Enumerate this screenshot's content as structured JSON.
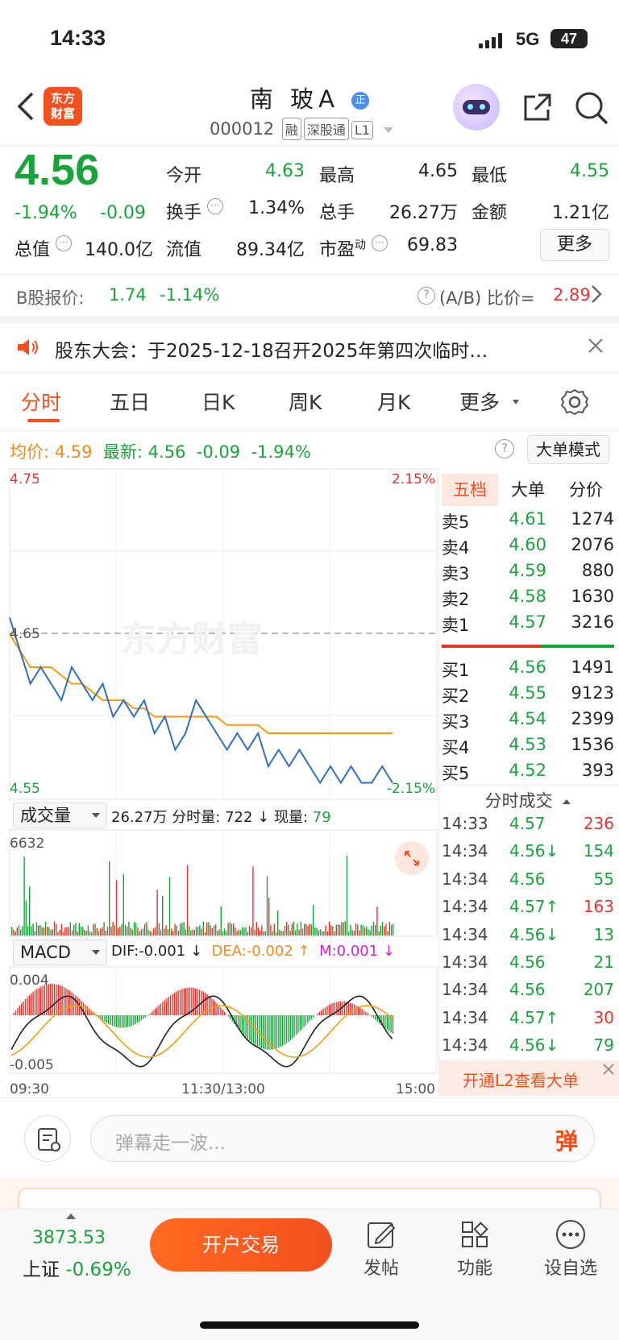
{
  "status_bar": {
    "time": "14:33",
    "network": "5G",
    "battery": "47"
  },
  "header": {
    "logo_text_1": "东方",
    "logo_text_2": "财富",
    "name": "南 玻A",
    "name_badge": "正",
    "code": "000012",
    "tags": [
      "融",
      "深股通",
      "L1"
    ]
  },
  "quote": {
    "price": "4.56",
    "change_pct": "-1.94%",
    "change": "-0.09",
    "open_label": "今开",
    "open": "4.63",
    "high_label": "最高",
    "high": "4.65",
    "low_label": "最低",
    "low": "4.55",
    "turnover_label": "换手",
    "turnover": "1.34%",
    "volume_label": "总手",
    "volume": "26.27万",
    "amount_label": "金额",
    "amount": "1.21亿",
    "mktcap_label": "总值",
    "mktcap": "140.0亿",
    "float_label": "流值",
    "float": "89.34亿",
    "pe_label": "市盈",
    "pe_sup": "动",
    "pe": "69.83",
    "more_label": "更多"
  },
  "bshare": {
    "label": "B股报价:",
    "price": "1.74",
    "change": "-1.14%",
    "ratio_label": "(A/B) 比价=",
    "ratio": "2.89"
  },
  "notice": {
    "text": "股东大会：于2025-12-18召开2025年第四次临时…"
  },
  "tabs": [
    "分时",
    "五日",
    "日K",
    "周K",
    "月K",
    "更多"
  ],
  "info_bar": {
    "avg_label": "均价:",
    "avg": "4.59",
    "latest_label": "最新:",
    "latest": "4.56",
    "chg": "-0.09",
    "pct": "-1.94%",
    "mode_btn": "大单模式"
  },
  "intraday_chart": {
    "price_top": "4.75",
    "price_mid": "4.65",
    "price_bottom": "4.55",
    "pct_top": "2.15%",
    "pct_bottom": "-2.15%",
    "watermark": "东方财富",
    "volume_label": "成交量",
    "volume_total": "26.27万",
    "seg_label": "分时量:",
    "seg_val": "722",
    "now_label": "现量:",
    "now_val": "79",
    "volume_max": "6632",
    "macd_label": "MACD",
    "dif": "DIF:-0.001",
    "dea": "DEA:-0.002",
    "m": "M:0.001",
    "macd_top": "0.004",
    "macd_bottom": "-0.005",
    "x_labels": [
      "09:30",
      "11:30/13:00",
      "15:00"
    ]
  },
  "chart_data": {
    "type": "line",
    "x_range": [
      "09:30",
      "15:00"
    ],
    "ylim": [
      4.55,
      4.75
    ],
    "series": [
      {
        "name": "最新",
        "values": [
          4.66,
          4.64,
          4.62,
          4.63,
          4.62,
          4.61,
          4.63,
          4.62,
          4.61,
          4.62,
          4.6,
          4.61,
          4.6,
          4.61,
          4.59,
          4.6,
          4.58,
          4.59,
          4.61,
          4.6,
          4.59,
          4.58,
          4.59,
          4.58,
          4.59,
          4.57,
          4.58,
          4.57,
          4.58,
          4.57,
          4.56,
          4.57,
          4.56,
          4.57,
          4.56,
          4.56,
          4.57,
          4.56
        ]
      },
      {
        "name": "均价",
        "values": [
          4.65,
          4.64,
          4.63,
          4.63,
          4.63,
          4.625,
          4.62,
          4.62,
          4.615,
          4.61,
          4.61,
          4.61,
          4.605,
          4.605,
          4.6,
          4.6,
          4.6,
          4.6,
          4.6,
          4.6,
          4.6,
          4.595,
          4.595,
          4.595,
          4.595,
          4.59,
          4.59,
          4.59,
          4.59,
          4.59,
          4.59,
          4.59,
          4.59,
          4.59,
          4.59,
          4.59,
          4.59,
          4.59
        ]
      }
    ]
  },
  "order_book": {
    "tabs": [
      "五档",
      "大单",
      "分价"
    ],
    "asks": [
      {
        "label": "卖5",
        "price": "4.61",
        "vol": "1274"
      },
      {
        "label": "卖4",
        "price": "4.60",
        "vol": "2076"
      },
      {
        "label": "卖3",
        "price": "4.59",
        "vol": "880"
      },
      {
        "label": "卖2",
        "price": "4.58",
        "vol": "1630"
      },
      {
        "label": "卖1",
        "price": "4.57",
        "vol": "3216"
      }
    ],
    "bids": [
      {
        "label": "买1",
        "price": "4.56",
        "vol": "1491"
      },
      {
        "label": "买2",
        "price": "4.55",
        "vol": "9123"
      },
      {
        "label": "买3",
        "price": "4.54",
        "vol": "2399"
      },
      {
        "label": "买4",
        "price": "4.53",
        "vol": "1536"
      },
      {
        "label": "买5",
        "price": "4.52",
        "vol": "393"
      }
    ],
    "deals_title": "分时成交",
    "deals": [
      {
        "time": "14:33",
        "price": "4.57",
        "vol": "236",
        "pc": "green",
        "vc": "red"
      },
      {
        "time": "14:34",
        "price": "4.56↓",
        "vol": "154",
        "pc": "green",
        "vc": "green"
      },
      {
        "time": "14:34",
        "price": "4.56",
        "vol": "55",
        "pc": "green",
        "vc": "green"
      },
      {
        "time": "14:34",
        "price": "4.57↑",
        "vol": "163",
        "pc": "green",
        "vc": "red"
      },
      {
        "time": "14:34",
        "price": "4.56↓",
        "vol": "13",
        "pc": "green",
        "vc": "green"
      },
      {
        "time": "14:34",
        "price": "4.56",
        "vol": "21",
        "pc": "green",
        "vc": "green"
      },
      {
        "time": "14:34",
        "price": "4.56",
        "vol": "207",
        "pc": "green",
        "vc": "green"
      },
      {
        "time": "14:34",
        "price": "4.57↑",
        "vol": "30",
        "pc": "green",
        "vc": "red"
      },
      {
        "time": "14:34",
        "price": "4.56↓",
        "vol": "79",
        "pc": "green",
        "vc": "green"
      }
    ],
    "l2_banner": "开通L2查看大单"
  },
  "danmu": {
    "placeholder": "弹幕走一波...",
    "send": "弹"
  },
  "bottom_bar": {
    "index_value": "3873.53",
    "index_name": "上证",
    "index_change": "-0.69%",
    "trade_btn": "开户交易",
    "post": "发帖",
    "func": "功能",
    "watch": "设自选"
  }
}
